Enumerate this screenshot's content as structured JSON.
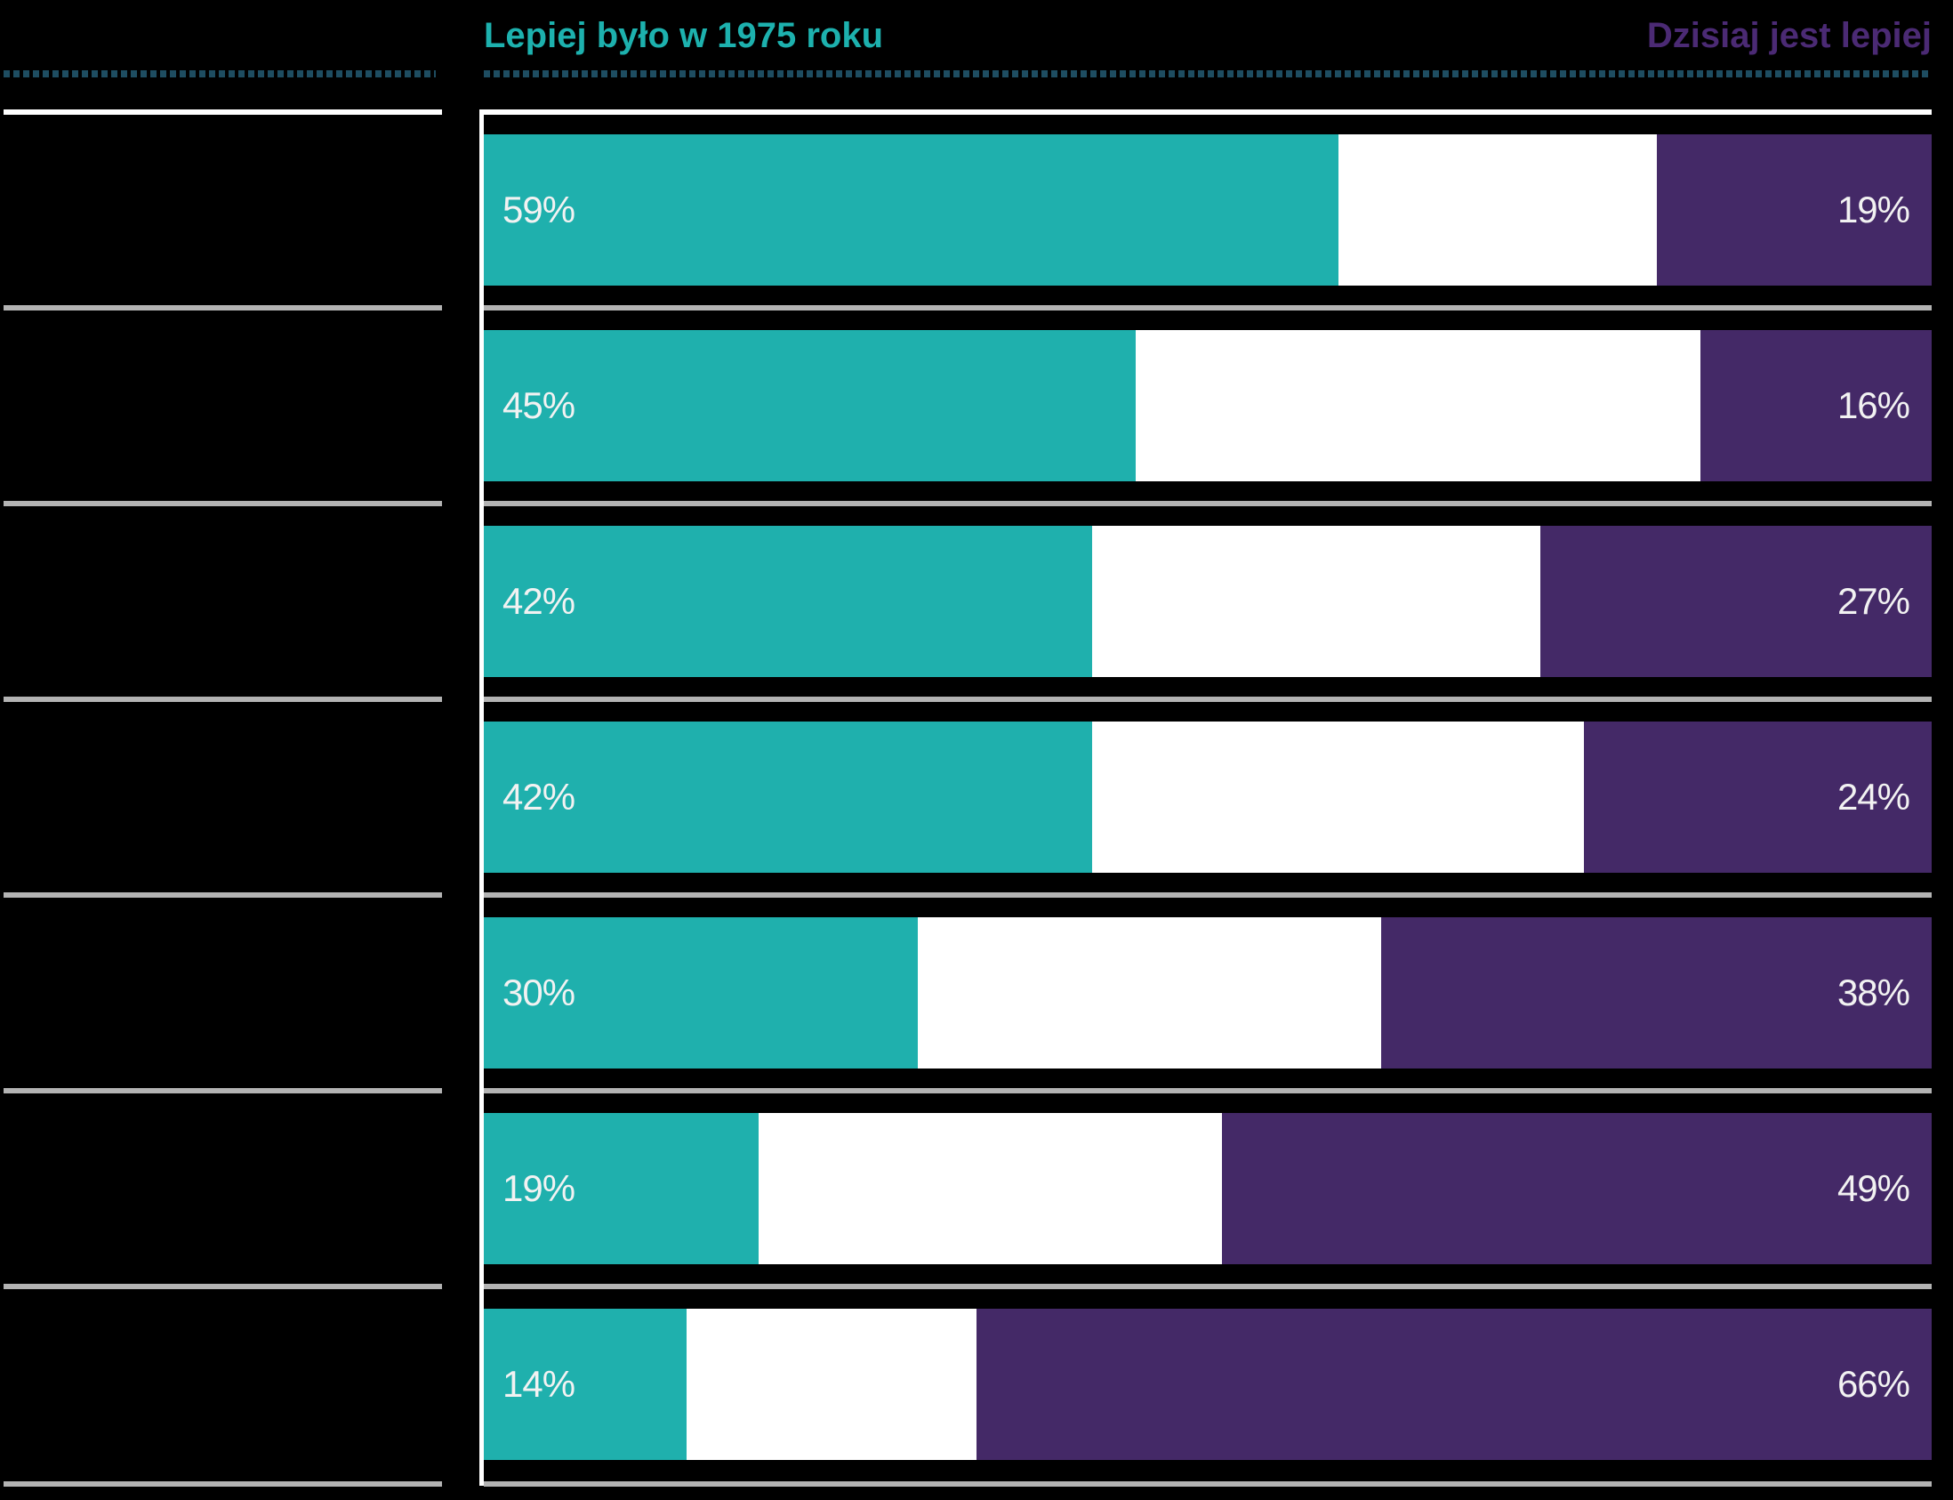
{
  "header": {
    "left_title": "Lepiej było w 1975 roku",
    "right_title": "Dzisiaj jest lepiej"
  },
  "colors": {
    "background": "#000000",
    "teal_bar": "#1fb0ad",
    "purple_bar": "#442967",
    "teal_title": "#1db1ae",
    "purple_title": "#4b2a74",
    "dotted_rule": "#1e4d61",
    "separator": "#b3b3b3",
    "separator_top": "#ffffff",
    "axis_line": "#ffffff",
    "middle_segment": "#ffffff",
    "value_label_text": "#f2f2f2"
  },
  "chart_data": {
    "type": "bar",
    "orientation": "horizontal",
    "stacked_to_100_percent": true,
    "axis_range": [
      0,
      100
    ],
    "grid": false,
    "legend_position": "top",
    "series": [
      {
        "name": "Lepiej było w 1975 roku",
        "side": "left",
        "color": "#1fb0ad",
        "values": [
          59,
          45,
          42,
          42,
          30,
          19,
          14
        ]
      },
      {
        "name": "Dzisiaj jest lepiej",
        "side": "right",
        "color": "#442967",
        "values": [
          19,
          16,
          27,
          24,
          38,
          49,
          66
        ]
      }
    ],
    "rows": [
      {
        "category_label": "",
        "left_pct": 59,
        "right_pct": 19,
        "left_text": "59%",
        "right_text": "19%"
      },
      {
        "category_label": "",
        "left_pct": 45,
        "right_pct": 16,
        "left_text": "45%",
        "right_text": "16%"
      },
      {
        "category_label": "",
        "left_pct": 42,
        "right_pct": 27,
        "left_text": "42%",
        "right_text": "27%"
      },
      {
        "category_label": "",
        "left_pct": 42,
        "right_pct": 24,
        "left_text": "42%",
        "right_text": "24%"
      },
      {
        "category_label": "",
        "left_pct": 30,
        "right_pct": 38,
        "left_text": "30%",
        "right_text": "38%"
      },
      {
        "category_label": "",
        "left_pct": 19,
        "right_pct": 49,
        "left_text": "19%",
        "right_text": "49%"
      },
      {
        "category_label": "",
        "left_pct": 14,
        "right_pct": 66,
        "left_text": "14%",
        "right_text": "66%"
      }
    ]
  }
}
